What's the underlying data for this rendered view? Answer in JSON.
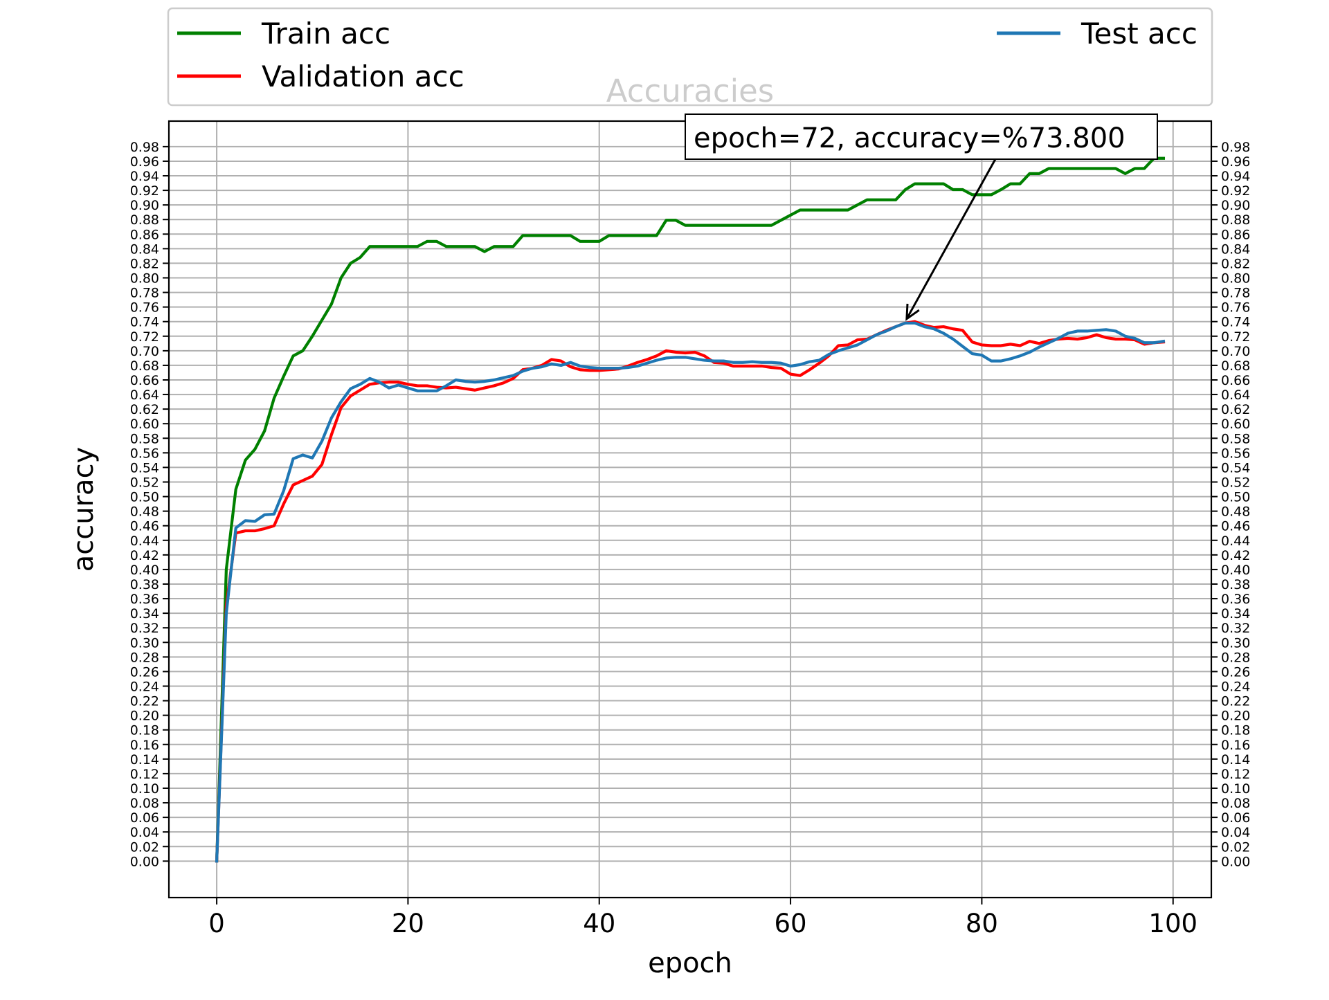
{
  "chart_data": {
    "type": "line",
    "title": "Accuracies",
    "xlabel": "epoch",
    "ylabel": "accuracy",
    "xlim": [
      -5,
      104
    ],
    "ylim": [
      -0.05,
      1.015
    ],
    "x_ticks": [
      0,
      20,
      40,
      60,
      80,
      100
    ],
    "y_ticks": [
      0.0,
      0.02,
      0.04,
      0.06,
      0.08,
      0.1,
      0.12,
      0.14,
      0.16,
      0.18,
      0.2,
      0.22,
      0.24,
      0.26,
      0.28,
      0.3,
      0.32,
      0.34,
      0.36,
      0.38,
      0.4,
      0.42,
      0.44,
      0.46,
      0.48,
      0.5,
      0.52,
      0.54,
      0.56,
      0.58,
      0.6,
      0.62,
      0.64,
      0.66,
      0.68,
      0.7,
      0.72,
      0.74,
      0.76,
      0.78,
      0.8,
      0.82,
      0.84,
      0.86,
      0.88,
      0.9,
      0.92,
      0.94,
      0.96,
      0.98
    ],
    "grid": true,
    "legend_placement": "top, above plot",
    "annotation": {
      "text": "epoch=72, accuracy=%73.800",
      "x": 72,
      "y": 0.738
    },
    "series": [
      {
        "name": "Train acc",
        "color": "#008000",
        "values": [
          0.0,
          0.4,
          0.51,
          0.55,
          0.565,
          0.59,
          0.635,
          0.665,
          0.693,
          0.7,
          0.72,
          0.742,
          0.764,
          0.8,
          0.82,
          0.828,
          0.843,
          0.843,
          0.843,
          0.843,
          0.843,
          0.843,
          0.85,
          0.85,
          0.843,
          0.843,
          0.843,
          0.843,
          0.836,
          0.843,
          0.843,
          0.843,
          0.858,
          0.858,
          0.858,
          0.858,
          0.858,
          0.858,
          0.85,
          0.85,
          0.85,
          0.858,
          0.858,
          0.858,
          0.858,
          0.858,
          0.858,
          0.879,
          0.879,
          0.872,
          0.872,
          0.872,
          0.872,
          0.872,
          0.872,
          0.872,
          0.872,
          0.872,
          0.872,
          0.879,
          0.886,
          0.893,
          0.893,
          0.893,
          0.893,
          0.893,
          0.893,
          0.9,
          0.907,
          0.907,
          0.907,
          0.907,
          0.921,
          0.929,
          0.929,
          0.929,
          0.929,
          0.921,
          0.921,
          0.914,
          0.914,
          0.914,
          0.921,
          0.929,
          0.929,
          0.943,
          0.943,
          0.95,
          0.95,
          0.95,
          0.95,
          0.95,
          0.95,
          0.95,
          0.95,
          0.943,
          0.95,
          0.95,
          0.964,
          0.964
        ]
      },
      {
        "name": "Validation acc",
        "color": "#ff0000",
        "values": [
          0.0,
          0.35,
          0.45,
          0.453,
          0.453,
          0.456,
          0.46,
          0.49,
          0.516,
          0.522,
          0.528,
          0.544,
          0.585,
          0.622,
          0.638,
          0.646,
          0.654,
          0.656,
          0.657,
          0.657,
          0.654,
          0.652,
          0.652,
          0.65,
          0.649,
          0.65,
          0.648,
          0.646,
          0.649,
          0.652,
          0.656,
          0.662,
          0.674,
          0.676,
          0.68,
          0.688,
          0.686,
          0.678,
          0.674,
          0.673,
          0.673,
          0.674,
          0.675,
          0.679,
          0.684,
          0.688,
          0.693,
          0.7,
          0.698,
          0.697,
          0.698,
          0.693,
          0.684,
          0.683,
          0.679,
          0.679,
          0.679,
          0.679,
          0.677,
          0.676,
          0.668,
          0.666,
          0.674,
          0.683,
          0.693,
          0.707,
          0.708,
          0.715,
          0.716,
          0.722,
          0.728,
          0.733,
          0.738,
          0.74,
          0.735,
          0.732,
          0.733,
          0.73,
          0.728,
          0.712,
          0.708,
          0.707,
          0.707,
          0.709,
          0.707,
          0.713,
          0.71,
          0.714,
          0.716,
          0.717,
          0.716,
          0.718,
          0.722,
          0.718,
          0.716,
          0.716,
          0.715,
          0.709,
          0.711,
          0.712
        ]
      },
      {
        "name": "Test acc",
        "color": "#1f77b4",
        "values": [
          0.0,
          0.34,
          0.457,
          0.467,
          0.466,
          0.475,
          0.476,
          0.508,
          0.552,
          0.557,
          0.553,
          0.576,
          0.608,
          0.63,
          0.648,
          0.654,
          0.662,
          0.657,
          0.649,
          0.653,
          0.649,
          0.645,
          0.645,
          0.645,
          0.652,
          0.66,
          0.658,
          0.657,
          0.658,
          0.66,
          0.663,
          0.666,
          0.672,
          0.676,
          0.678,
          0.682,
          0.68,
          0.684,
          0.679,
          0.677,
          0.676,
          0.676,
          0.676,
          0.677,
          0.679,
          0.683,
          0.687,
          0.69,
          0.691,
          0.691,
          0.689,
          0.687,
          0.686,
          0.686,
          0.684,
          0.684,
          0.685,
          0.684,
          0.684,
          0.683,
          0.679,
          0.681,
          0.685,
          0.687,
          0.695,
          0.7,
          0.704,
          0.708,
          0.715,
          0.722,
          0.727,
          0.733,
          0.738,
          0.738,
          0.733,
          0.73,
          0.724,
          0.716,
          0.706,
          0.696,
          0.694,
          0.686,
          0.686,
          0.689,
          0.693,
          0.698,
          0.705,
          0.711,
          0.717,
          0.724,
          0.727,
          0.727,
          0.728,
          0.729,
          0.727,
          0.72,
          0.717,
          0.711,
          0.711,
          0.713
        ]
      }
    ]
  }
}
